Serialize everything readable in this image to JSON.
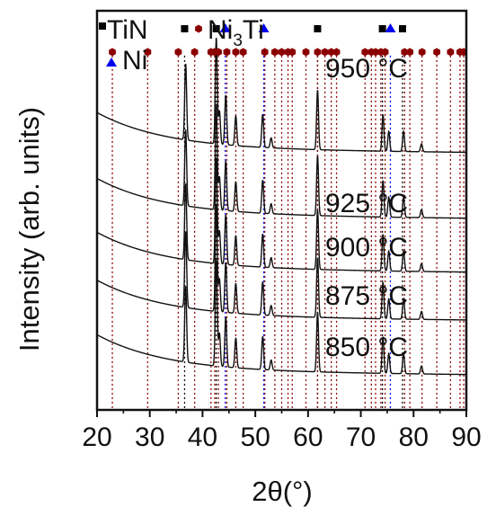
{
  "chart_data": {
    "type": "line",
    "xlabel": "2θ(°)",
    "ylabel": "Intensity (arb. units)",
    "xlim": [
      20,
      90
    ],
    "xticks": [
      20,
      30,
      40,
      50,
      60,
      70,
      80,
      90
    ],
    "y_ticks_shown": false,
    "legend": [
      {
        "name": "TiN",
        "sub": "",
        "marker": "square",
        "color": "#000000"
      },
      {
        "name": "Ni",
        "sub": "3",
        "suffix": "Ti",
        "marker": "hexagon",
        "color": "#8b0000"
      },
      {
        "name": "Ni",
        "sub": "",
        "marker": "triangle",
        "color": "#0000ee"
      }
    ],
    "series": [
      {
        "name": "950 °C",
        "level": 3.92
      },
      {
        "name": "925 °C",
        "level": 2.93
      },
      {
        "name": "900 °C",
        "level": 2.12
      },
      {
        "name": "875 °C",
        "level": 1.4
      },
      {
        "name": "850 °C",
        "level": 0.58
      }
    ],
    "background_decay": 0.55,
    "peaks": [
      {
        "x": 36.8,
        "h": 1.15
      },
      {
        "x": 42.6,
        "h": 1.6
      },
      {
        "x": 43.2,
        "h": 0.5
      },
      {
        "x": 44.4,
        "h": 0.75
      },
      {
        "x": 46.3,
        "h": 0.45
      },
      {
        "x": 51.4,
        "h": 0.5
      },
      {
        "x": 53.0,
        "h": 0.15
      },
      {
        "x": 61.8,
        "h": 0.9
      },
      {
        "x": 74.2,
        "h": 0.55
      },
      {
        "x": 75.3,
        "h": 0.3
      },
      {
        "x": 78.1,
        "h": 0.3
      },
      {
        "x": 81.5,
        "h": 0.12
      }
    ],
    "reference_lines": {
      "TiN": [
        36.6,
        42.6,
        61.8,
        74.1,
        77.9
      ],
      "Ni3Ti": [
        22.9,
        29.6,
        35.4,
        38.5,
        41.6,
        42.3,
        43.0,
        44.6,
        46.3,
        47.7,
        51.8,
        53.7,
        55.0,
        56.2,
        57.0,
        59.6,
        61.8,
        63.2,
        64.4,
        65.4,
        70.8,
        72.0,
        72.8,
        73.8,
        74.6,
        78.3,
        79.3,
        81.6,
        84.4,
        87.0,
        88.8,
        89.5
      ],
      "Ni": [
        44.3,
        51.6,
        75.6
      ]
    },
    "marker_row_TiN": 5.73,
    "marker_row_Ni3Ti": 5.38,
    "marker_row_Ni": 5.73
  }
}
